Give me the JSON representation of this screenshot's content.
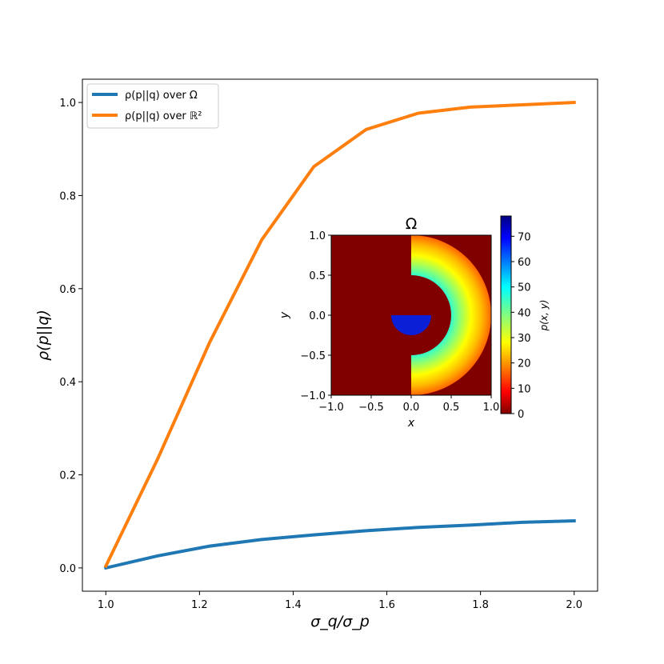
{
  "chart_data": [
    {
      "type": "line",
      "xlabel": "σ_q/σ_p",
      "ylabel": "ρ(p||q)",
      "xlim": [
        0.95,
        2.05
      ],
      "ylim": [
        -0.05,
        1.05
      ],
      "xticks": [
        1.0,
        1.2,
        1.4,
        1.6,
        1.8,
        2.0
      ],
      "xtick_labels": [
        "1.0",
        "1.2",
        "1.4",
        "1.6",
        "1.8",
        "2.0"
      ],
      "yticks": [
        0.0,
        0.2,
        0.4,
        0.6,
        0.8,
        1.0
      ],
      "ytick_labels": [
        "0.0",
        "0.2",
        "0.4",
        "0.6",
        "0.8",
        "1.0"
      ],
      "grid": false,
      "legend_position": "top-left",
      "x": [
        1.0,
        1.111,
        1.222,
        1.333,
        1.444,
        1.556,
        1.667,
        1.778,
        1.889,
        2.0
      ],
      "series": [
        {
          "name": "ρ(p||q) over Ω",
          "color": "#1f77b4",
          "values": [
            0.0,
            0.026,
            0.047,
            0.061,
            0.071,
            0.08,
            0.087,
            0.092,
            0.098,
            0.101
          ]
        },
        {
          "name": "ρ(p||q) over ℝ²",
          "color": "#ff7f0e",
          "values": [
            0.004,
            0.235,
            0.485,
            0.705,
            0.862,
            0.942,
            0.977,
            0.99,
            0.995,
            1.0
          ]
        }
      ]
    },
    {
      "type": "heatmap",
      "title": "Ω",
      "xlabel": "x",
      "ylabel": "y",
      "xlim": [
        -1.0,
        1.0
      ],
      "ylim": [
        -1.0,
        1.0
      ],
      "xticks": [
        -1.0,
        -0.5,
        0.0,
        0.5,
        1.0
      ],
      "xtick_labels": [
        "−1.0",
        "−0.5",
        "0.0",
        "0.5",
        "1.0"
      ],
      "yticks": [
        -1.0,
        -0.5,
        0.0,
        0.5,
        1.0
      ],
      "ytick_labels": [
        "−1.0",
        "−0.5",
        "0.0",
        "0.5",
        "1.0"
      ],
      "colormap": "jet_r",
      "colorbar": {
        "label": "p(x, y)",
        "range": [
          0,
          78
        ],
        "ticks": [
          0,
          10,
          20,
          30,
          40,
          50,
          60,
          70
        ],
        "tick_labels": [
          "0",
          "10",
          "20",
          "30",
          "40",
          "50",
          "60",
          "70"
        ]
      },
      "regions": [
        {
          "shape": "background",
          "value": 0
        },
        {
          "shape": "half-annulus",
          "side": "right",
          "inner_radius": 0.5,
          "outer_radius": 1.0,
          "value_at_inner": 47,
          "value_at_outer": 16
        },
        {
          "shape": "half-disk",
          "side": "bottom",
          "radius": 0.25,
          "value": 72
        }
      ]
    }
  ]
}
